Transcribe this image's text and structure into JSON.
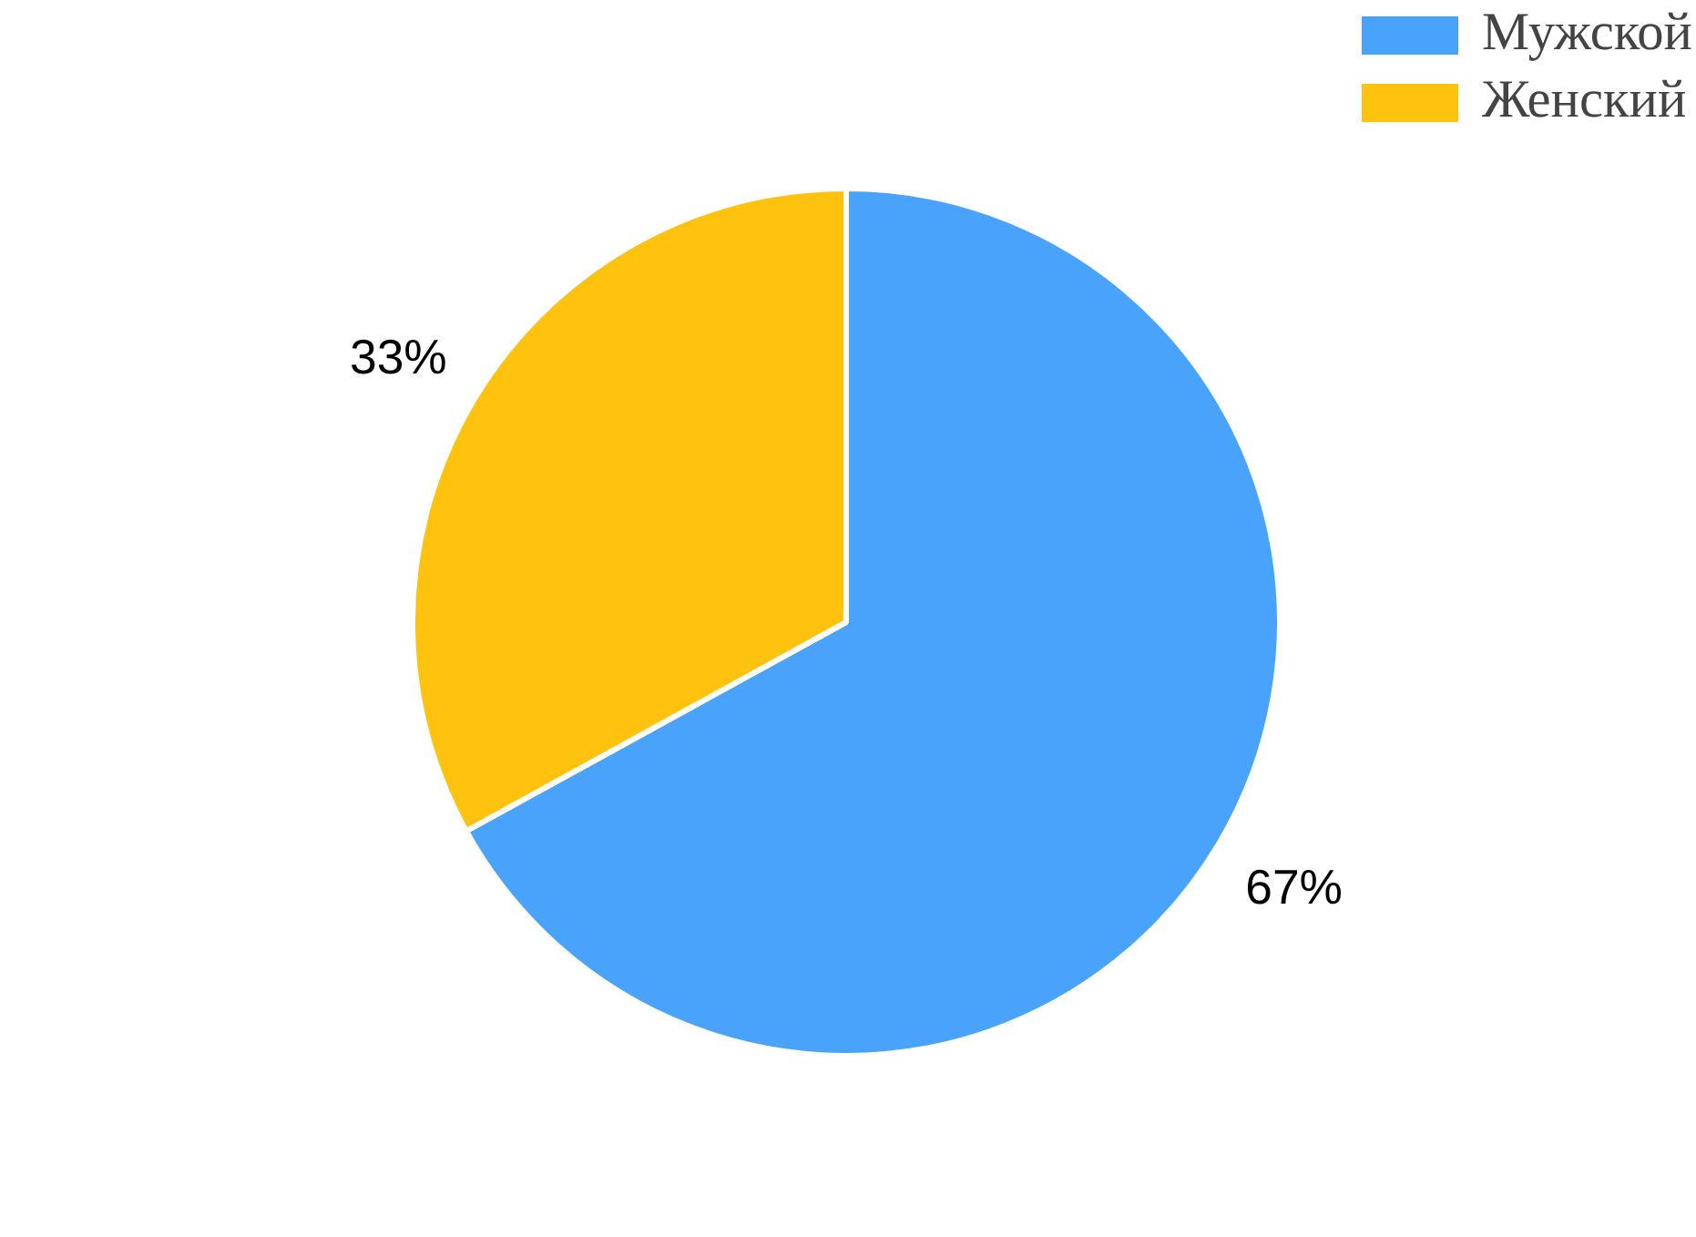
{
  "chart_data": {
    "type": "pie",
    "categories": [
      "Мужской",
      "Женский"
    ],
    "values": [
      67,
      33
    ],
    "colors": [
      "#4aa3fb",
      "#ffc20e"
    ],
    "value_labels": [
      "67%",
      "33%"
    ],
    "legend": "top right"
  }
}
